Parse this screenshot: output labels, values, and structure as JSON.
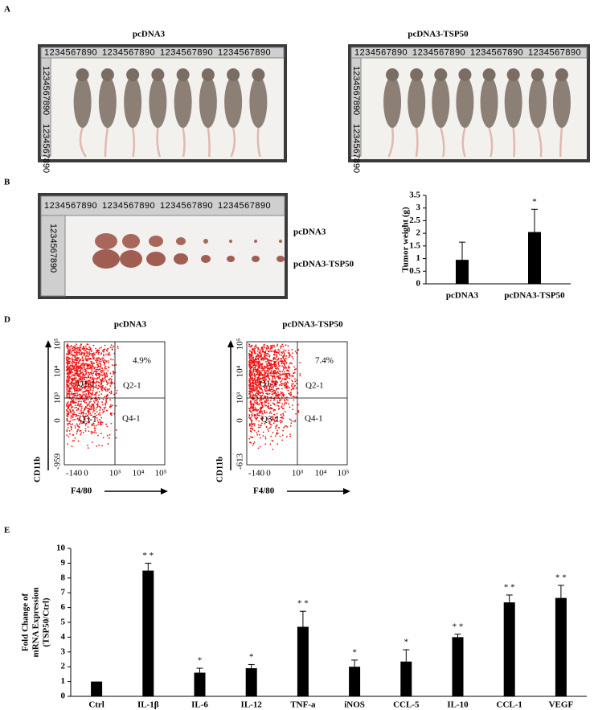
{
  "panel_labels": [
    "A",
    "B",
    "D",
    "E"
  ],
  "panel_a": {
    "titles": [
      "pcDNA3",
      "pcDNA3-TSP50"
    ]
  },
  "panel_b": {
    "photo_labels": [
      "pcDNA3",
      "pcDNA3-TSP50"
    ]
  },
  "ruler_digits": "1234567890",
  "panel_d": {
    "y_label": "CD11b",
    "x_label": "F4/80",
    "plots": [
      {
        "title": "pcDNA3",
        "percent": "4.9%",
        "quadrants": [
          "Q1-1",
          "Q2-1",
          "Q3-1",
          "Q4-1"
        ],
        "yticks": [
          "10⁵",
          "10⁴",
          "10³",
          "0",
          "-959"
        ],
        "xticks": [
          "-140",
          "0",
          "10³",
          "10⁴",
          "10⁵"
        ]
      },
      {
        "title": "pcDNA3-TSP50",
        "percent": "7.4%",
        "quadrants": [
          "Q1-1",
          "Q2-1",
          "Q3-1",
          "Q4-1"
        ],
        "yticks": [
          "10⁵",
          "10⁴",
          "10³",
          "0",
          "-613"
        ],
        "xticks": [
          "-140",
          "0",
          "10³",
          "10⁴",
          "10⁵"
        ]
      }
    ]
  },
  "chart_data": [
    {
      "type": "bar",
      "y_label": [
        "Tumor weight (g)"
      ],
      "categories": [
        "pcDNA3",
        "pcDNA3-TSP50"
      ],
      "values": [
        0.95,
        2.05
      ],
      "errors": [
        0.7,
        0.9
      ],
      "annotations": [
        null,
        "*"
      ],
      "ylim": [
        0,
        3.5
      ],
      "yticks": [
        0,
        0.5,
        1,
        1.5,
        2,
        2.5,
        3,
        3.5
      ],
      "color": "#000000"
    },
    {
      "type": "bar",
      "y_label": [
        "Fold Change of",
        "mRNA Expression",
        "(TSP50/Ctrl)"
      ],
      "categories": [
        "Ctrl",
        "IL-1β",
        "IL-6",
        "IL-12",
        "TNF-a",
        "iNOS",
        "CCL-5",
        "IL-10",
        "CCL-1",
        "VEGF"
      ],
      "values": [
        1,
        8.5,
        1.6,
        1.9,
        4.7,
        2.0,
        2.35,
        4.0,
        6.35,
        6.65
      ],
      "errors": [
        0,
        0.5,
        0.3,
        0.25,
        1.05,
        0.45,
        0.8,
        0.2,
        0.5,
        0.85
      ],
      "annotations": [
        null,
        "* *",
        "*",
        "*",
        "* *",
        "*",
        "*",
        "* *",
        "* *",
        "* *"
      ],
      "ylim": [
        0,
        10
      ],
      "yticks": [
        0,
        1,
        2,
        3,
        4,
        5,
        6,
        7,
        8,
        9,
        10
      ],
      "color": "#000000"
    }
  ]
}
